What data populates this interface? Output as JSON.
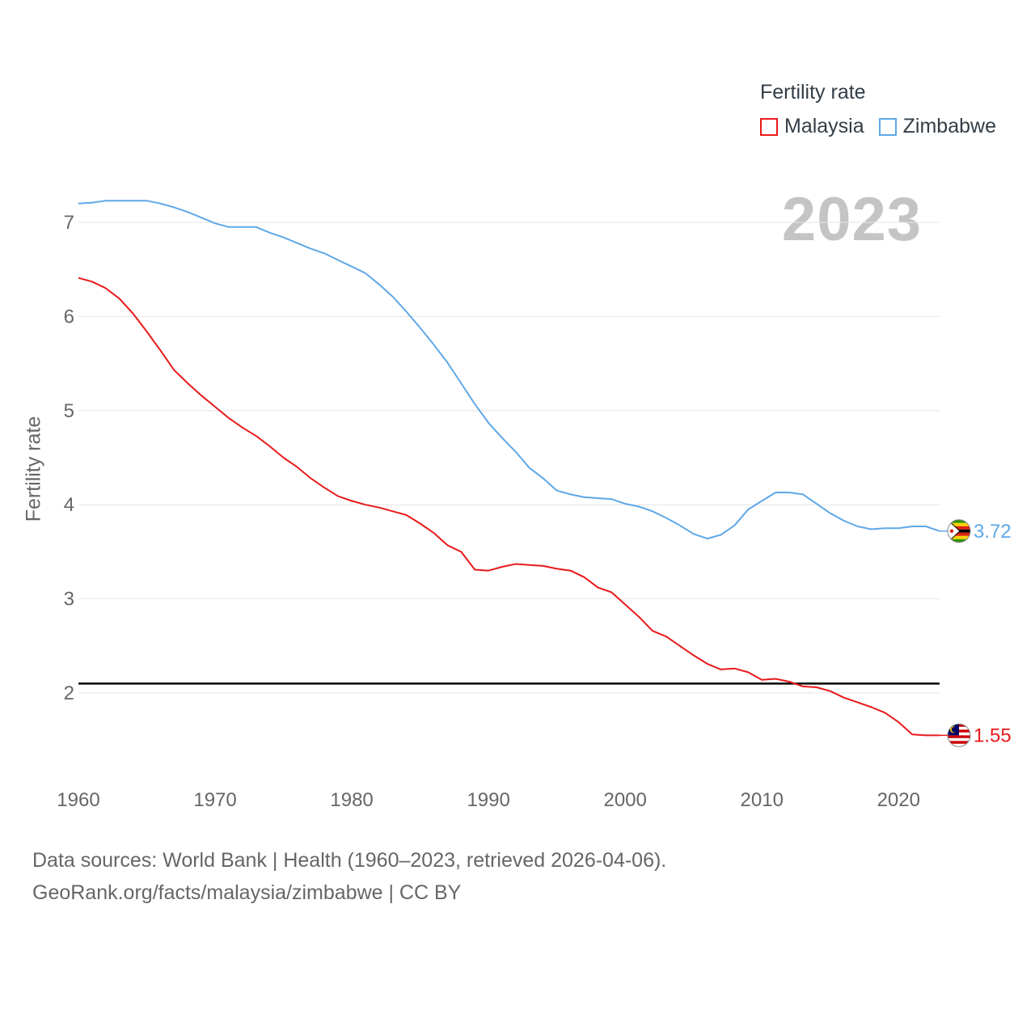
{
  "legend": {
    "title": "Fertility rate",
    "items": [
      {
        "name": "Malaysia",
        "color": "#e8191b"
      },
      {
        "name": "Zimbabwe",
        "color": "#5fa8e8"
      }
    ]
  },
  "year_display": "2023",
  "source": {
    "line1": "Data sources: World Bank | Health (1960–2023, retrieved 2026-04-06).",
    "line2": "GeoRank.org/facts/malaysia/zimbabwe | CC BY"
  },
  "chart_data": {
    "type": "line",
    "title": "",
    "xlabel": "",
    "ylabel": "Fertility rate",
    "xlim": [
      1960,
      2023
    ],
    "ylim": [
      1.0,
      7.3
    ],
    "x_ticks": [
      1960,
      1970,
      1980,
      1990,
      2000,
      2010,
      2020
    ],
    "y_ticks": [
      2,
      3,
      4,
      5,
      6,
      7
    ],
    "reference_line": {
      "value": 2.1,
      "color": "#000000"
    },
    "x": [
      1960,
      1961,
      1962,
      1963,
      1964,
      1965,
      1966,
      1967,
      1968,
      1969,
      1970,
      1971,
      1972,
      1973,
      1974,
      1975,
      1976,
      1977,
      1978,
      1979,
      1980,
      1981,
      1982,
      1983,
      1984,
      1985,
      1986,
      1987,
      1988,
      1989,
      1990,
      1991,
      1992,
      1993,
      1994,
      1995,
      1996,
      1997,
      1998,
      1999,
      2000,
      2001,
      2002,
      2003,
      2004,
      2005,
      2006,
      2007,
      2008,
      2009,
      2010,
      2011,
      2012,
      2013,
      2014,
      2015,
      2016,
      2017,
      2018,
      2019,
      2020,
      2021,
      2022,
      2023
    ],
    "series": [
      {
        "name": "Zimbabwe",
        "color": "#5fa8e8",
        "end_label": "3.72",
        "values": [
          7.2,
          7.21,
          7.23,
          7.23,
          7.23,
          7.23,
          7.2,
          7.16,
          7.11,
          7.05,
          6.99,
          6.95,
          6.95,
          6.95,
          6.89,
          6.84,
          6.78,
          6.72,
          6.67,
          6.6,
          6.53,
          6.46,
          6.34,
          6.21,
          6.05,
          5.88,
          5.7,
          5.51,
          5.29,
          5.07,
          4.87,
          4.71,
          4.56,
          4.39,
          4.28,
          4.15,
          4.11,
          4.08,
          4.07,
          4.06,
          4.01,
          3.98,
          3.93,
          3.86,
          3.78,
          3.69,
          3.64,
          3.68,
          3.78,
          3.95,
          4.04,
          4.13,
          4.13,
          4.11,
          4.01,
          3.91,
          3.83,
          3.77,
          3.74,
          3.75,
          3.75,
          3.77,
          3.77,
          3.72
        ]
      },
      {
        "name": "Malaysia",
        "color": "#e8191b",
        "end_label": "1.55",
        "values": [
          6.41,
          6.37,
          6.3,
          6.19,
          6.03,
          5.84,
          5.64,
          5.43,
          5.29,
          5.16,
          5.04,
          4.92,
          4.82,
          4.73,
          4.62,
          4.5,
          4.4,
          4.28,
          4.18,
          4.09,
          4.04,
          4.0,
          3.97,
          3.93,
          3.89,
          3.8,
          3.7,
          3.57,
          3.5,
          3.31,
          3.3,
          3.34,
          3.37,
          3.36,
          3.35,
          3.32,
          3.3,
          3.23,
          3.12,
          3.07,
          2.94,
          2.81,
          2.66,
          2.6,
          2.5,
          2.4,
          2.31,
          2.25,
          2.26,
          2.22,
          2.14,
          2.15,
          2.12,
          2.07,
          2.06,
          2.02,
          1.95,
          1.9,
          1.85,
          1.79,
          1.69,
          1.56,
          1.55,
          1.55
        ]
      }
    ]
  }
}
